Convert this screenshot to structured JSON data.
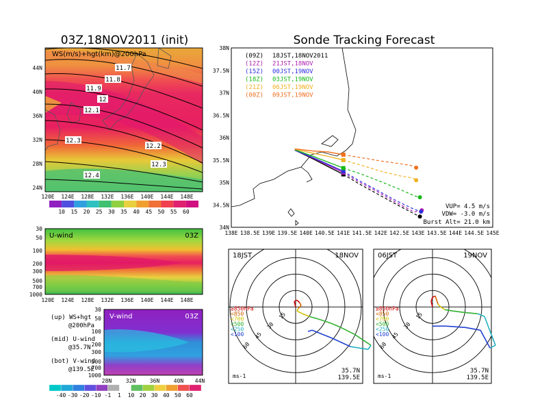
{
  "left": {
    "title": "03Z,18NOV2011 (init)",
    "ws_panel_label": "WS(m/s)+hgt(km)@200hPa",
    "lon_ticks": [
      "120E",
      "124E",
      "128E",
      "132E",
      "136E",
      "140E",
      "144E",
      "148E"
    ],
    "lat_ticks": [
      "44N",
      "40N",
      "36N",
      "32N",
      "28N",
      "24N"
    ],
    "contour_labels": [
      "11.7",
      "11.8",
      "11.9",
      "12",
      "12.1",
      "12.2",
      "12.3",
      "12.3",
      "12.4"
    ],
    "ws_colorbar": [
      "10",
      "15",
      "20",
      "25",
      "30",
      "35",
      "40",
      "45",
      "50",
      "55",
      "60"
    ],
    "uwind_label": "U-wind",
    "uwind_time": "03Z",
    "p_ticks": [
      "30",
      "50",
      "100",
      "200",
      "300",
      "500",
      "700",
      "1000"
    ],
    "vwind_label": "V-wind",
    "vwind_time": "03Z",
    "vwind_lat_ticks": [
      "28N",
      "32N",
      "36N",
      "40N",
      "44N"
    ],
    "wind_colorbar": [
      "-40",
      "-30",
      "-20",
      "-10",
      "-1",
      "1",
      "10",
      "20",
      "30",
      "40",
      "50",
      "60"
    ],
    "notes": [
      {
        "a": "(up)  WS+hgt",
        "b": "@200hPa"
      },
      {
        "a": "(mid)  U-wind",
        "b": "@35.7N"
      },
      {
        "a": "(bot)  V-wind",
        "b": "@139.5E"
      }
    ]
  },
  "track": {
    "title": "Sonde Tracking Forecast",
    "legend": [
      {
        "code": "(09Z)",
        "text": "18JST,18NOV2011",
        "color": "#000000"
      },
      {
        "code": "(12Z)",
        "text": "21JST,18NOV",
        "color": "#b020b0"
      },
      {
        "code": "(15Z)",
        "text": "00JST,19NOV",
        "color": "#3030e0"
      },
      {
        "code": "(18Z)",
        "text": "03JST,19NOV",
        "color": "#18b818"
      },
      {
        "code": "(21Z)",
        "text": "06JST,19NOV",
        "color": "#f0b020"
      },
      {
        "code": "(00Z)",
        "text": "09JST,19NOV",
        "color": "#f07020"
      }
    ],
    "lon_ticks": [
      "138E",
      "138.5E",
      "139E",
      "139.5E",
      "140E",
      "140.5E",
      "141E",
      "141.5E",
      "142E",
      "142.5E",
      "143E",
      "143.5E",
      "144E",
      "144.5E",
      "145E"
    ],
    "lat_ticks": [
      "38N",
      "37.5N",
      "37N",
      "36.5N",
      "36N",
      "35.5N",
      "35N",
      "34.5N",
      "34N"
    ],
    "vup": "VUP= 4.5 m/s",
    "vdw": "VDW= -3.0 m/s",
    "burst": "Burst Alt= 21.0 km"
  },
  "hodo_left": {
    "time": "18JST",
    "date": "18NOV",
    "legend": [
      "≥850hPa",
      "<850",
      "<700",
      "<500",
      "<250",
      "<100"
    ],
    "legend_colors": [
      "#d00000",
      "#d06000",
      "#d0c000",
      "#30b030",
      "#20b0c0",
      "#2040d0"
    ],
    "ring_labels": [
      "15",
      "30",
      "45",
      "60"
    ],
    "unit": "ms-1",
    "lat": "35.7N",
    "lon": "139.5E"
  },
  "hodo_right": {
    "time": "06JST",
    "date": "19NOV",
    "legend": [
      "≥850hPa",
      "<850",
      "<700",
      "<500",
      "<250",
      "<100"
    ],
    "legend_colors": [
      "#d00000",
      "#d06000",
      "#d0c000",
      "#30b030",
      "#20b0c0",
      "#2040d0"
    ],
    "ring_labels": [
      "15",
      "30",
      "45",
      "60"
    ],
    "unit": "ms-1",
    "lat": "35.7N",
    "lon": "139.5E"
  },
  "chart_data": [
    {
      "type": "line",
      "title": "Sonde Tracking Forecast",
      "xlabel": "",
      "ylabel": "",
      "xlim": [
        138,
        145
      ],
      "ylim": [
        34,
        38
      ],
      "series": [
        {
          "name": "(09Z) 18JST,18NOV2011",
          "x": [
            139.7,
            140.2,
            140.6,
            141.0,
            141.4,
            141.9,
            142.4,
            142.9,
            143.05
          ],
          "y": [
            35.72,
            35.52,
            35.35,
            35.18,
            34.98,
            34.75,
            34.52,
            34.3,
            34.24
          ]
        },
        {
          "name": "(12Z) 21JST,18NOV",
          "x": [
            139.7,
            140.2,
            140.6,
            141.0,
            141.4,
            141.9,
            142.4,
            142.9,
            143.1
          ],
          "y": [
            35.72,
            35.54,
            35.38,
            35.22,
            35.02,
            34.8,
            34.56,
            34.34,
            34.38
          ]
        },
        {
          "name": "(15Z) 00JST,19NOV",
          "x": [
            139.7,
            140.2,
            140.6,
            141.0,
            141.4,
            141.9,
            142.4,
            142.9,
            143.08
          ],
          "y": [
            35.72,
            35.55,
            35.4,
            35.25,
            35.05,
            34.83,
            34.6,
            34.4,
            34.35
          ]
        },
        {
          "name": "(18Z) 03JST,19NOV",
          "x": [
            139.7,
            140.2,
            140.6,
            141.0,
            141.5,
            142.0,
            142.5,
            142.9,
            143.05
          ],
          "y": [
            35.73,
            35.58,
            35.45,
            35.32,
            35.18,
            35.02,
            34.85,
            34.7,
            34.67
          ]
        },
        {
          "name": "(21Z) 06JST,19NOV",
          "x": [
            139.7,
            140.2,
            140.6,
            141.0,
            141.5,
            142.0,
            142.5,
            142.85,
            142.95
          ],
          "y": [
            35.74,
            35.65,
            35.58,
            35.5,
            35.38,
            35.25,
            35.15,
            35.1,
            35.05
          ]
        },
        {
          "name": "(00Z) 09JST,19NOV",
          "x": [
            139.7,
            140.2,
            140.6,
            141.0,
            141.5,
            142.0,
            142.5,
            142.8,
            142.95
          ],
          "y": [
            35.75,
            35.7,
            35.68,
            35.62,
            35.55,
            35.48,
            35.42,
            35.38,
            35.33
          ]
        }
      ]
    }
  ]
}
